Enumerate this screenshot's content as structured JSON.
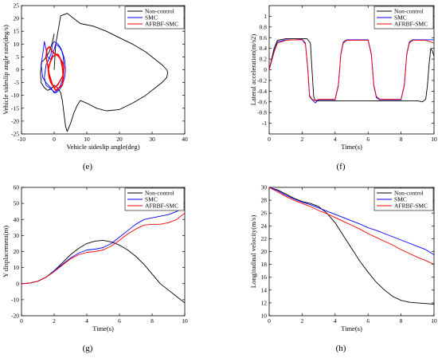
{
  "colors": {
    "non_control": "#000000",
    "smc": "#0000ff",
    "afrbf_smc": "#ff0000"
  },
  "legend": [
    "Non-control",
    "SMC",
    "AFRBF-SMC"
  ],
  "panel_labels": [
    "(e)",
    "(f)",
    "(g)",
    "(h)"
  ],
  "chart_data": [
    {
      "id": "e",
      "type": "line",
      "xlabel": "Vehicle sideslip angle(deg)",
      "ylabel": "Vehicle sideslip angle rate(deg/s)",
      "xlim": [
        -10,
        40
      ],
      "ylim": [
        -25,
        25
      ],
      "xticks": [
        -10,
        0,
        10,
        20,
        30,
        40
      ],
      "xtick_labels": [
        "-10",
        "0",
        "10",
        "20",
        "30",
        "40"
      ],
      "yticks": [
        -25,
        -20,
        -15,
        -10,
        -5,
        0,
        5,
        10,
        15,
        20,
        25
      ],
      "ytick_labels": [
        "-25",
        "-20",
        "-15",
        "-10",
        "-5",
        "0",
        "5",
        "10",
        "15",
        "20",
        "25"
      ],
      "series": [
        {
          "name": "Non-control",
          "x": [
            0,
            0.5,
            2,
            4,
            6,
            8,
            12,
            16,
            20,
            24,
            28,
            31,
            33,
            34.5,
            34.8,
            34.5,
            33,
            31,
            28,
            24,
            20,
            16,
            13,
            10,
            8,
            7,
            6,
            5,
            4,
            3.5,
            3,
            2.5,
            2,
            1,
            0,
            -1,
            -2,
            -3,
            -4,
            -4.2,
            -3.8,
            -3,
            -2.5,
            -1.5,
            -0.5,
            0
          ],
          "y": [
            0,
            10,
            21,
            22,
            20,
            18,
            17,
            15,
            12.5,
            10,
            7,
            4,
            2,
            0,
            -1,
            -3,
            -5,
            -7,
            -10,
            -13,
            -15.5,
            -16,
            -15,
            -13,
            -12,
            -14,
            -17,
            -21,
            -24,
            -22,
            -17,
            -12,
            -9,
            -7,
            -6,
            -7.5,
            -8,
            -7,
            -5,
            -1,
            3,
            4,
            5,
            7,
            11,
            14
          ]
        },
        {
          "name": "SMC",
          "x": [
            -1,
            -2,
            -3,
            -3.5,
            -4,
            -3.5,
            -2.5,
            -1,
            0,
            1,
            2,
            2.8,
            3,
            2.8,
            2.2,
            1.2,
            0,
            -0.5,
            -1,
            -2,
            -2.5,
            -3,
            -2.5,
            -1.5,
            -0.5,
            0.5,
            1.5,
            2.5,
            3.2,
            3.5,
            3.2,
            2.5,
            1.5,
            0.5,
            -1
          ],
          "y": [
            4,
            5,
            11,
            6,
            2,
            -3,
            -5,
            -7,
            -9,
            -8,
            -6,
            -3,
            1,
            5,
            8,
            10,
            11,
            10,
            6,
            3,
            2,
            -3,
            -6,
            -7,
            -8,
            -9,
            -8,
            -6,
            -3,
            0,
            4,
            7,
            9,
            10,
            4
          ]
        },
        {
          "name": "AFRBF-SMC",
          "x": [
            -2,
            -2.5,
            -2.2,
            -1.5,
            -0.5,
            0.5,
            1.5,
            2.5,
            3,
            2.8,
            2,
            1,
            0,
            -0.5,
            -1,
            -1.5,
            -1.8,
            -1.2,
            -0.5,
            0.5,
            1.2,
            2,
            2.5,
            2.8,
            2.5,
            1.5,
            0.5,
            -0.5,
            -1.5,
            -2
          ],
          "y": [
            2,
            5,
            8,
            9,
            7,
            6,
            5,
            3,
            1,
            -2,
            -4,
            -6,
            -7,
            -6,
            -5,
            -3,
            0,
            3,
            5,
            6,
            6,
            4,
            1,
            -3,
            -6,
            -7,
            -8,
            -6,
            -2,
            2
          ]
        }
      ]
    },
    {
      "id": "f",
      "type": "line",
      "xlabel": "Time(s)",
      "ylabel": "Lateral acceleration(m/s2)",
      "xlim": [
        0,
        10
      ],
      "ylim": [
        -1.2,
        1.2
      ],
      "xticks": [
        0,
        2,
        4,
        6,
        8,
        10
      ],
      "xtick_labels": [
        "0",
        "2",
        "4",
        "6",
        "8",
        "10"
      ],
      "yticks": [
        -1,
        -0.8,
        -0.6,
        -0.4,
        -0.2,
        0,
        0.2,
        0.4,
        0.6,
        0.8,
        1
      ],
      "ytick_labels": [
        "-1",
        "-0.8",
        "-0.6",
        "-0.4",
        "-0.2",
        "0",
        "0.2",
        "0.4",
        "0.6",
        "0.8",
        "1"
      ],
      "series": [
        {
          "name": "Non-control",
          "x": [
            0,
            0.3,
            0.5,
            1,
            1.5,
            2,
            2.3,
            2.5,
            2.6,
            2.7,
            2.8,
            3,
            4,
            5,
            6,
            7,
            8,
            9,
            9.3,
            9.5,
            9.6,
            9.7,
            9.8,
            9.9,
            10
          ],
          "y": [
            0,
            0.4,
            0.55,
            0.58,
            0.58,
            0.58,
            0.58,
            0.5,
            0,
            -0.5,
            -0.58,
            -0.58,
            -0.58,
            -0.58,
            -0.58,
            -0.58,
            -0.58,
            -0.58,
            -0.6,
            -0.55,
            -0.3,
            0.1,
            0.4,
            0.35,
            0.25
          ]
        },
        {
          "name": "SMC",
          "x": [
            0,
            0.3,
            0.5,
            1,
            1.5,
            2,
            2.2,
            2.35,
            2.45,
            2.6,
            2.8,
            3,
            4,
            4.2,
            4.35,
            4.5,
            4.7,
            5,
            5.5,
            6,
            6.2,
            6.35,
            6.5,
            6.7,
            7,
            7.5,
            8,
            8.2,
            8.35,
            8.5,
            8.7,
            9,
            9.5,
            10
          ],
          "y": [
            0,
            0.35,
            0.52,
            0.56,
            0.56,
            0.57,
            0.5,
            0,
            -0.5,
            -0.56,
            -0.62,
            -0.56,
            -0.56,
            -0.3,
            0.3,
            0.52,
            0.56,
            0.56,
            0.56,
            0.56,
            0.3,
            -0.3,
            -0.52,
            -0.56,
            -0.56,
            -0.56,
            -0.56,
            -0.3,
            0.3,
            0.52,
            0.56,
            0.56,
            0.56,
            0.56
          ]
        },
        {
          "name": "AFRBF-SMC",
          "x": [
            0,
            0.3,
            0.5,
            1,
            1.5,
            2,
            2.2,
            2.35,
            2.45,
            2.6,
            2.8,
            3,
            4,
            4.2,
            4.35,
            4.5,
            4.7,
            5,
            5.5,
            6,
            6.2,
            6.35,
            6.5,
            6.7,
            7,
            7.5,
            8,
            8.2,
            8.35,
            8.5,
            8.7,
            9,
            9.5,
            10
          ],
          "y": [
            0,
            0.33,
            0.5,
            0.55,
            0.56,
            0.56,
            0.48,
            0,
            -0.48,
            -0.55,
            -0.58,
            -0.55,
            -0.55,
            -0.28,
            0.28,
            0.5,
            0.55,
            0.55,
            0.55,
            0.55,
            0.28,
            -0.28,
            -0.5,
            -0.55,
            -0.55,
            -0.55,
            -0.55,
            -0.28,
            0.28,
            0.5,
            0.55,
            0.55,
            0.55,
            0.5
          ]
        }
      ]
    },
    {
      "id": "g",
      "type": "line",
      "xlabel": "Time(s)",
      "ylabel": "Y displacement(m)",
      "xlim": [
        0,
        10
      ],
      "ylim": [
        -20,
        60
      ],
      "xticks": [
        0,
        2,
        4,
        6,
        8,
        10
      ],
      "xtick_labels": [
        "0",
        "2",
        "4",
        "6",
        "8",
        "10"
      ],
      "yticks": [
        -20,
        -10,
        0,
        10,
        20,
        30,
        40,
        50,
        60
      ],
      "ytick_labels": [
        "-20",
        "-10",
        "0",
        "10",
        "20",
        "30",
        "40",
        "50",
        "60"
      ],
      "series": [
        {
          "name": "Non-control",
          "x": [
            0,
            0.5,
            1,
            1.5,
            2,
            2.5,
            3,
            3.5,
            4,
            4.5,
            5,
            5.5,
            6,
            6.5,
            7,
            7.5,
            8,
            8.5,
            9,
            9.5,
            10
          ],
          "y": [
            0,
            0.3,
            1.5,
            4,
            8,
            13,
            18,
            22,
            25,
            26.5,
            27,
            26,
            24,
            21,
            17,
            12,
            6,
            0,
            -4,
            -8,
            -12
          ]
        },
        {
          "name": "SMC",
          "x": [
            0,
            0.5,
            1,
            1.5,
            2,
            2.5,
            3,
            3.5,
            4,
            4.5,
            5,
            5.5,
            6,
            6.5,
            7,
            7.5,
            8,
            8.5,
            9,
            9.5,
            10
          ],
          "y": [
            0,
            0.3,
            1.5,
            4,
            8,
            12,
            16,
            19,
            21,
            21.5,
            22.5,
            25,
            29,
            33,
            37,
            40,
            41,
            42,
            43,
            45,
            48
          ]
        },
        {
          "name": "AFRBF-SMC",
          "x": [
            0,
            0.5,
            1,
            1.5,
            2,
            2.5,
            3,
            3.5,
            4,
            4.5,
            5,
            5.5,
            6,
            6.5,
            7,
            7.5,
            8,
            8.5,
            9,
            9.5,
            10
          ],
          "y": [
            0,
            0.3,
            1.5,
            4,
            7.5,
            11.5,
            15.5,
            18,
            19.5,
            20,
            21,
            23.5,
            27,
            31,
            34,
            36.5,
            37,
            37,
            38,
            40,
            44
          ]
        }
      ]
    },
    {
      "id": "h",
      "type": "line",
      "xlabel": "Time(s)",
      "ylabel": "Longitudinal velocity(m/s)",
      "xlim": [
        0,
        10
      ],
      "ylim": [
        10,
        30
      ],
      "xticks": [
        0,
        2,
        4,
        6,
        8,
        10
      ],
      "xtick_labels": [
        "0",
        "2",
        "4",
        "6",
        "8",
        "10"
      ],
      "yticks": [
        10,
        12,
        14,
        16,
        18,
        20,
        22,
        24,
        26,
        28,
        30
      ],
      "ytick_labels": [
        "10",
        "12",
        "14",
        "16",
        "18",
        "20",
        "22",
        "24",
        "26",
        "28",
        "30"
      ],
      "series": [
        {
          "name": "Non-control",
          "x": [
            0,
            0.5,
            1,
            1.5,
            2,
            2.5,
            3,
            3.5,
            4,
            4.5,
            5,
            5.5,
            6,
            6.5,
            7,
            7.5,
            8,
            8.5,
            9,
            9.5,
            10
          ],
          "y": [
            30,
            29.6,
            29,
            28.3,
            27.8,
            27.5,
            27,
            26,
            24.5,
            22.5,
            20.5,
            18.5,
            16.8,
            15.2,
            14,
            13,
            12.4,
            12.1,
            12,
            11.9,
            11.8
          ]
        },
        {
          "name": "SMC",
          "x": [
            0,
            0.5,
            1,
            1.5,
            2,
            2.5,
            3,
            3.5,
            4,
            4.5,
            5,
            5.5,
            6,
            6.5,
            7,
            7.5,
            8,
            8.5,
            9,
            9.5,
            10
          ],
          "y": [
            30,
            29.5,
            28.8,
            28.2,
            27.7,
            27.3,
            26.8,
            26.3,
            25.8,
            25.3,
            24.8,
            24.3,
            23.7,
            23.3,
            22.8,
            22.3,
            21.8,
            21.3,
            20.8,
            20.3,
            19.5
          ]
        },
        {
          "name": "AFRBF-SMC",
          "x": [
            0,
            0.5,
            1,
            1.5,
            2,
            2.5,
            3,
            3.5,
            4,
            4.5,
            5,
            5.5,
            6,
            6.5,
            7,
            7.5,
            8,
            8.5,
            9,
            9.5,
            10
          ],
          "y": [
            30,
            29.3,
            28.6,
            28,
            27.5,
            27,
            26.4,
            25.9,
            25.3,
            24.7,
            24.1,
            23.5,
            22.8,
            22.2,
            21.6,
            21,
            20.3,
            19.7,
            19.1,
            18.6,
            18
          ]
        }
      ]
    }
  ]
}
